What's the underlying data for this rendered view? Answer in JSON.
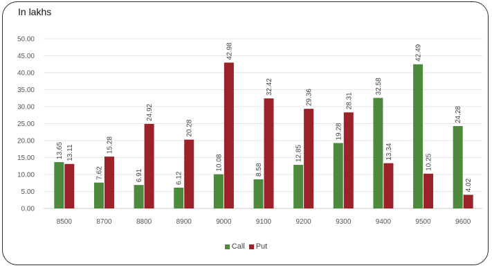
{
  "chart_data": {
    "type": "bar",
    "unit_label": "In lakhs",
    "categories": [
      "8500",
      "8700",
      "8800",
      "8900",
      "9000",
      "9100",
      "9200",
      "9300",
      "9400",
      "9500",
      "9600"
    ],
    "series": [
      {
        "name": "Call",
        "color": "#4e8a3e",
        "values": [
          13.65,
          7.62,
          6.91,
          6.12,
          10.08,
          8.58,
          12.85,
          19.28,
          32.58,
          42.49,
          24.28
        ]
      },
      {
        "name": "Put",
        "color": "#9b2228",
        "values": [
          13.11,
          15.28,
          24.92,
          20.28,
          42.98,
          32.42,
          29.36,
          28.31,
          13.34,
          10.25,
          4.02
        ]
      }
    ],
    "data_labels": [
      [
        "13.65",
        "7.62",
        "6.91",
        "6.12",
        "10.08",
        "8.58",
        "12.85",
        "19.28",
        "32.58",
        "42.49",
        "24.28"
      ],
      [
        "13.11",
        "15.28",
        "24.92",
        "20.28",
        "42.98",
        "32.42",
        "29.36",
        "28.31",
        "13.34",
        "10.25",
        "4.02"
      ]
    ],
    "y_ticks": [
      "0.00",
      "5.00",
      "10.00",
      "15.00",
      "20.00",
      "25.00",
      "30.00",
      "35.00",
      "40.00",
      "45.00",
      "50.00"
    ],
    "ylim": [
      0,
      50
    ],
    "grid": true,
    "legend_position": "bottom"
  }
}
